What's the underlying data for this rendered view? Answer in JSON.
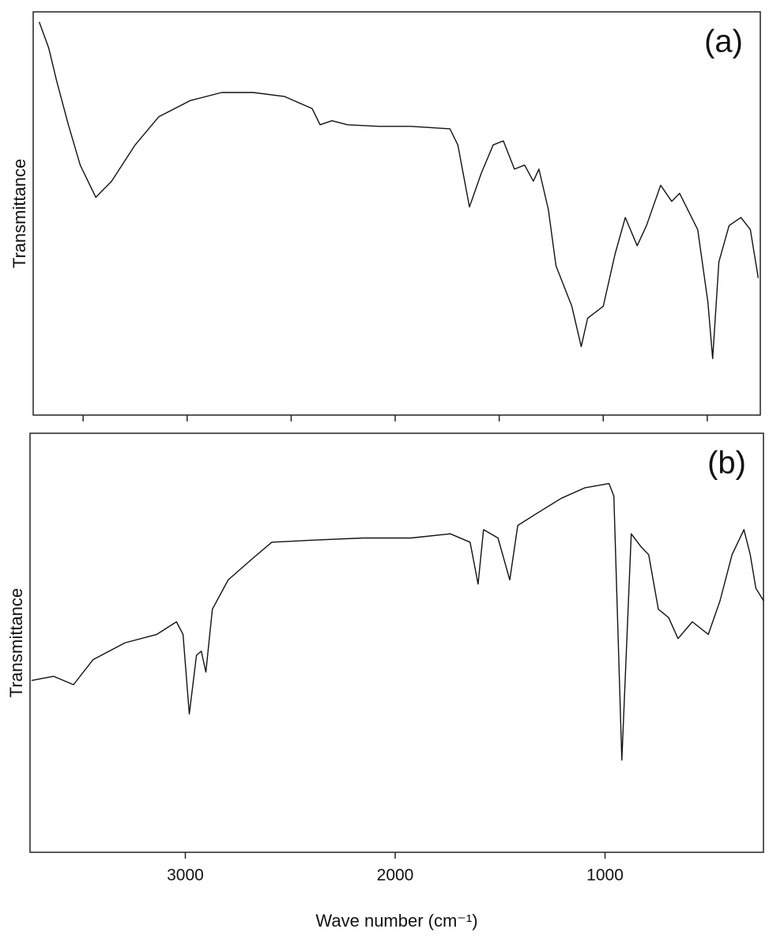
{
  "chart_data": [
    {
      "type": "line",
      "annotation": "(a)",
      "ylabel": "Transmittance",
      "xlim": [
        3740,
        245
      ],
      "ylim": [
        0,
        100
      ],
      "xticks": [
        3500,
        3000,
        2500,
        2000,
        1500,
        1000,
        500
      ],
      "xtick_labels": false,
      "series": [
        {
          "name": "(a)",
          "color": "#111111",
          "x": [
            3711,
            3665,
            3628,
            3571,
            3514,
            3439,
            3363,
            3250,
            3136,
            2985,
            2834,
            2682,
            2531,
            2399,
            2361,
            2304,
            2229,
            2077,
            1926,
            1737,
            1699,
            1643,
            1586,
            1529,
            1480,
            1427,
            1378,
            1336,
            1309,
            1264,
            1227,
            1151,
            1106,
            1075,
            1000,
            943,
            894,
            837,
            792,
            724,
            671,
            633,
            546,
            497,
            474,
            444,
            395,
            338,
            293,
            255
          ],
          "values": [
            97.5,
            91,
            83,
            72,
            62,
            54,
            58,
            67,
            74,
            78,
            80,
            80,
            79,
            76,
            72,
            73,
            72,
            71.6,
            71.6,
            71,
            67,
            51.6,
            60,
            67,
            68,
            61,
            62,
            58,
            61,
            51,
            37,
            27,
            17,
            24,
            27,
            40,
            49,
            42,
            47,
            57,
            53,
            55,
            46,
            28,
            14,
            38,
            47,
            49,
            46,
            34
          ]
        }
      ]
    },
    {
      "type": "line",
      "annotation": "(b)",
      "ylabel": "Transmittance",
      "xlabel": "Wave number (cm⁻¹)",
      "xlim": [
        3740,
        245
      ],
      "ylim": [
        0,
        100
      ],
      "xticks": [
        3000,
        2000,
        1000
      ],
      "xtick_labels": true,
      "series": [
        {
          "name": "(b)",
          "color": "#111111",
          "x": [
            3733,
            3628,
            3533,
            3439,
            3287,
            3136,
            3042,
            3011,
            2981,
            2947,
            2924,
            2902,
            2871,
            2796,
            2682,
            2588,
            2380,
            2153,
            1926,
            1737,
            1643,
            1605,
            1579,
            1510,
            1454,
            1416,
            1321,
            1208,
            1095,
            981,
            958,
            920,
            875,
            830,
            792,
            746,
            697,
            652,
            584,
            508,
            452,
            395,
            338,
            308,
            281,
            244
          ],
          "values": [
            41,
            42,
            40,
            46,
            50,
            52,
            55,
            52,
            33,
            47,
            48,
            43,
            58,
            65,
            70,
            74,
            74.5,
            75,
            75,
            76,
            74,
            64,
            77,
            75,
            65,
            78,
            81,
            84.5,
            87,
            88,
            85,
            22,
            76,
            73,
            71,
            58,
            56,
            51,
            55,
            52,
            60,
            71,
            77,
            71,
            63,
            60
          ]
        }
      ]
    }
  ]
}
